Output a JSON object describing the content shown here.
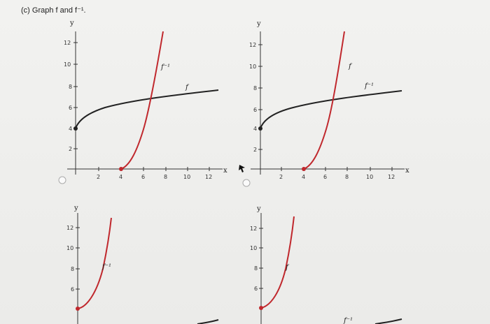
{
  "prompt": "(c) Graph f and f⁻¹.",
  "axis": {
    "x_label": "x",
    "y_label": "y"
  },
  "labels": {
    "f": "f",
    "f_inv": "f⁻¹"
  },
  "colors": {
    "f_inverse_red": "#c0282d",
    "f_black": "#222222",
    "axis": "#333333"
  },
  "options": [
    {
      "id": "A",
      "x_ticks": [
        "2",
        "4",
        "6",
        "8",
        "10",
        "12"
      ],
      "y_ticks": [
        "2",
        "4",
        "6",
        "8",
        "10",
        "12"
      ],
      "red_label": "f⁻¹",
      "black_label": "f"
    },
    {
      "id": "B",
      "x_ticks": [
        "2",
        "4",
        "6",
        "8",
        "10",
        "12"
      ],
      "y_ticks": [
        "2",
        "4",
        "6",
        "8",
        "10",
        "12"
      ],
      "red_label": "f",
      "black_label": "f⁻¹"
    },
    {
      "id": "C",
      "y_ticks": [
        "6",
        "8",
        "10",
        "12"
      ],
      "red_label": "f⁻¹"
    },
    {
      "id": "D",
      "y_ticks": [
        "6",
        "8",
        "10",
        "12"
      ],
      "red_label": "f",
      "bottom_label": "f⁻¹"
    }
  ]
}
